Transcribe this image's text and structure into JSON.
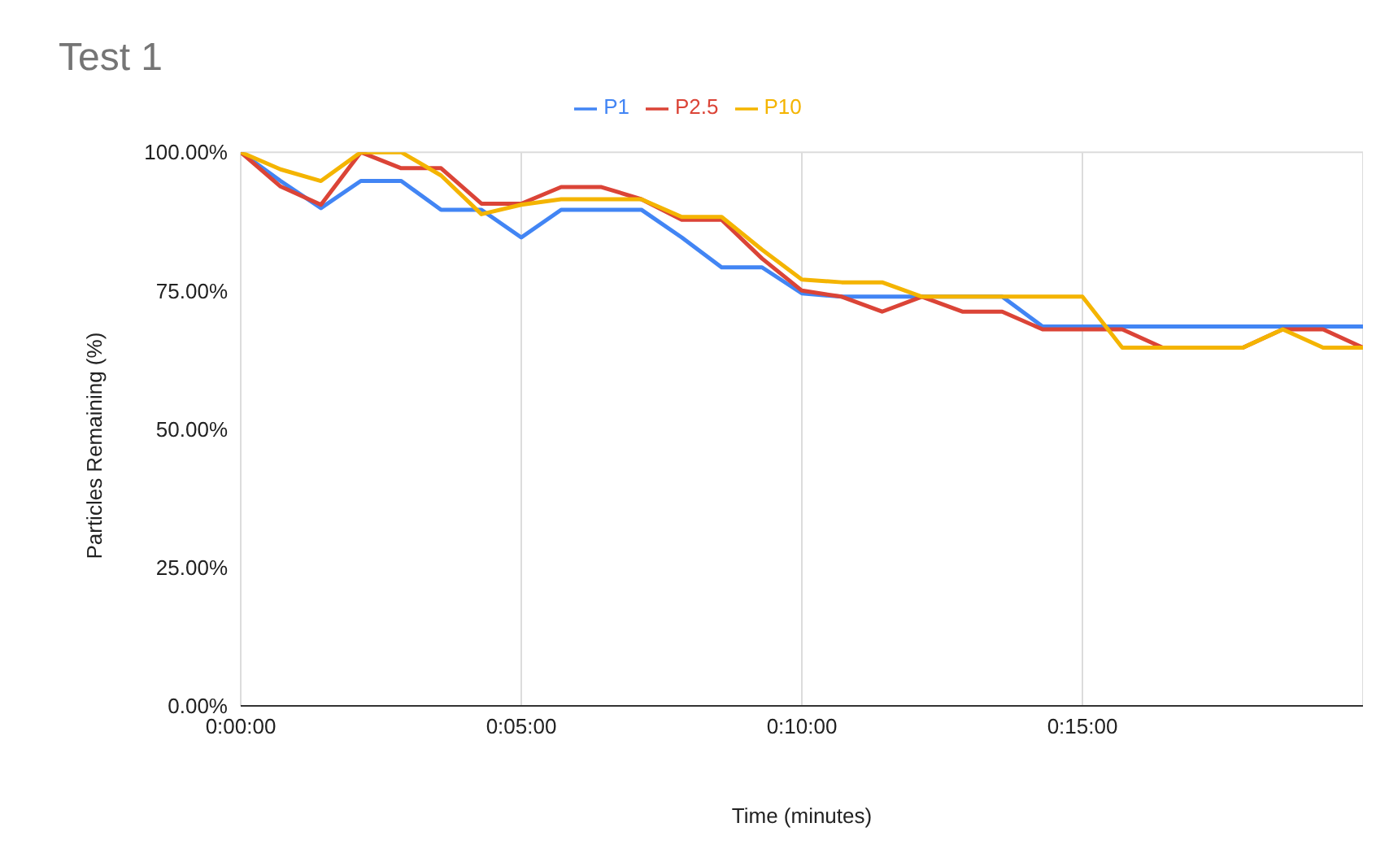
{
  "chart_data": {
    "type": "line",
    "title": "Test 1",
    "xlabel": "Time (minutes)",
    "ylabel": "Particles Remaining (%)",
    "x": [
      0,
      0.71,
      1.43,
      2.14,
      2.86,
      3.57,
      4.29,
      5,
      5.71,
      6.43,
      7.14,
      7.86,
      8.57,
      9.29,
      10,
      10.71,
      11.43,
      12.14,
      12.86,
      13.57,
      14.29,
      15,
      15.71,
      16.43,
      17.14,
      17.86,
      18.57,
      19.29,
      20
    ],
    "series": [
      {
        "name": "P1",
        "color": "#4285f4",
        "values": [
          100,
          94.8,
          89.9,
          94.8,
          94.8,
          89.6,
          89.6,
          84.6,
          89.6,
          89.6,
          89.6,
          84.6,
          79.2,
          79.2,
          74.5,
          73.9,
          73.9,
          73.9,
          73.9,
          73.9,
          68.5,
          68.5,
          68.5,
          68.5,
          68.5,
          68.5,
          68.5,
          68.5,
          68.5
        ]
      },
      {
        "name": "P2.5",
        "color": "#db4437",
        "values": [
          100,
          93.8,
          90.5,
          100,
          97.1,
          97.1,
          90.7,
          90.7,
          93.7,
          93.7,
          91.5,
          87.8,
          87.8,
          80.8,
          75,
          73.9,
          71.2,
          73.9,
          71.2,
          71.2,
          68,
          68,
          68,
          64.7,
          64.7,
          64.7,
          68,
          68,
          64.7
        ]
      },
      {
        "name": "P10",
        "color": "#f4b400",
        "values": [
          100,
          96.9,
          94.8,
          100,
          100,
          95.8,
          88.8,
          90.5,
          91.5,
          91.5,
          91.5,
          88.3,
          88.3,
          82.4,
          77,
          76.5,
          76.5,
          73.9,
          73.9,
          73.9,
          73.9,
          73.9,
          64.7,
          64.7,
          64.7,
          64.7,
          68,
          64.7,
          64.7
        ]
      }
    ],
    "xlim": [
      0,
      20
    ],
    "xticks": [
      {
        "value": 0,
        "label": "0:00:00"
      },
      {
        "value": 5,
        "label": "0:05:00"
      },
      {
        "value": 10,
        "label": "0:10:00"
      },
      {
        "value": 15,
        "label": "0:15:00"
      }
    ],
    "ylim": [
      0,
      100
    ],
    "yticks": [
      {
        "value": 0,
        "label": "0.00%"
      },
      {
        "value": 25,
        "label": "25.00%"
      },
      {
        "value": 50,
        "label": "50.00%"
      },
      {
        "value": 75,
        "label": "75.00%"
      },
      {
        "value": 100,
        "label": "100.00%"
      }
    ],
    "grid": true,
    "legend": "top",
    "marker": "none",
    "line_style": "solid"
  }
}
